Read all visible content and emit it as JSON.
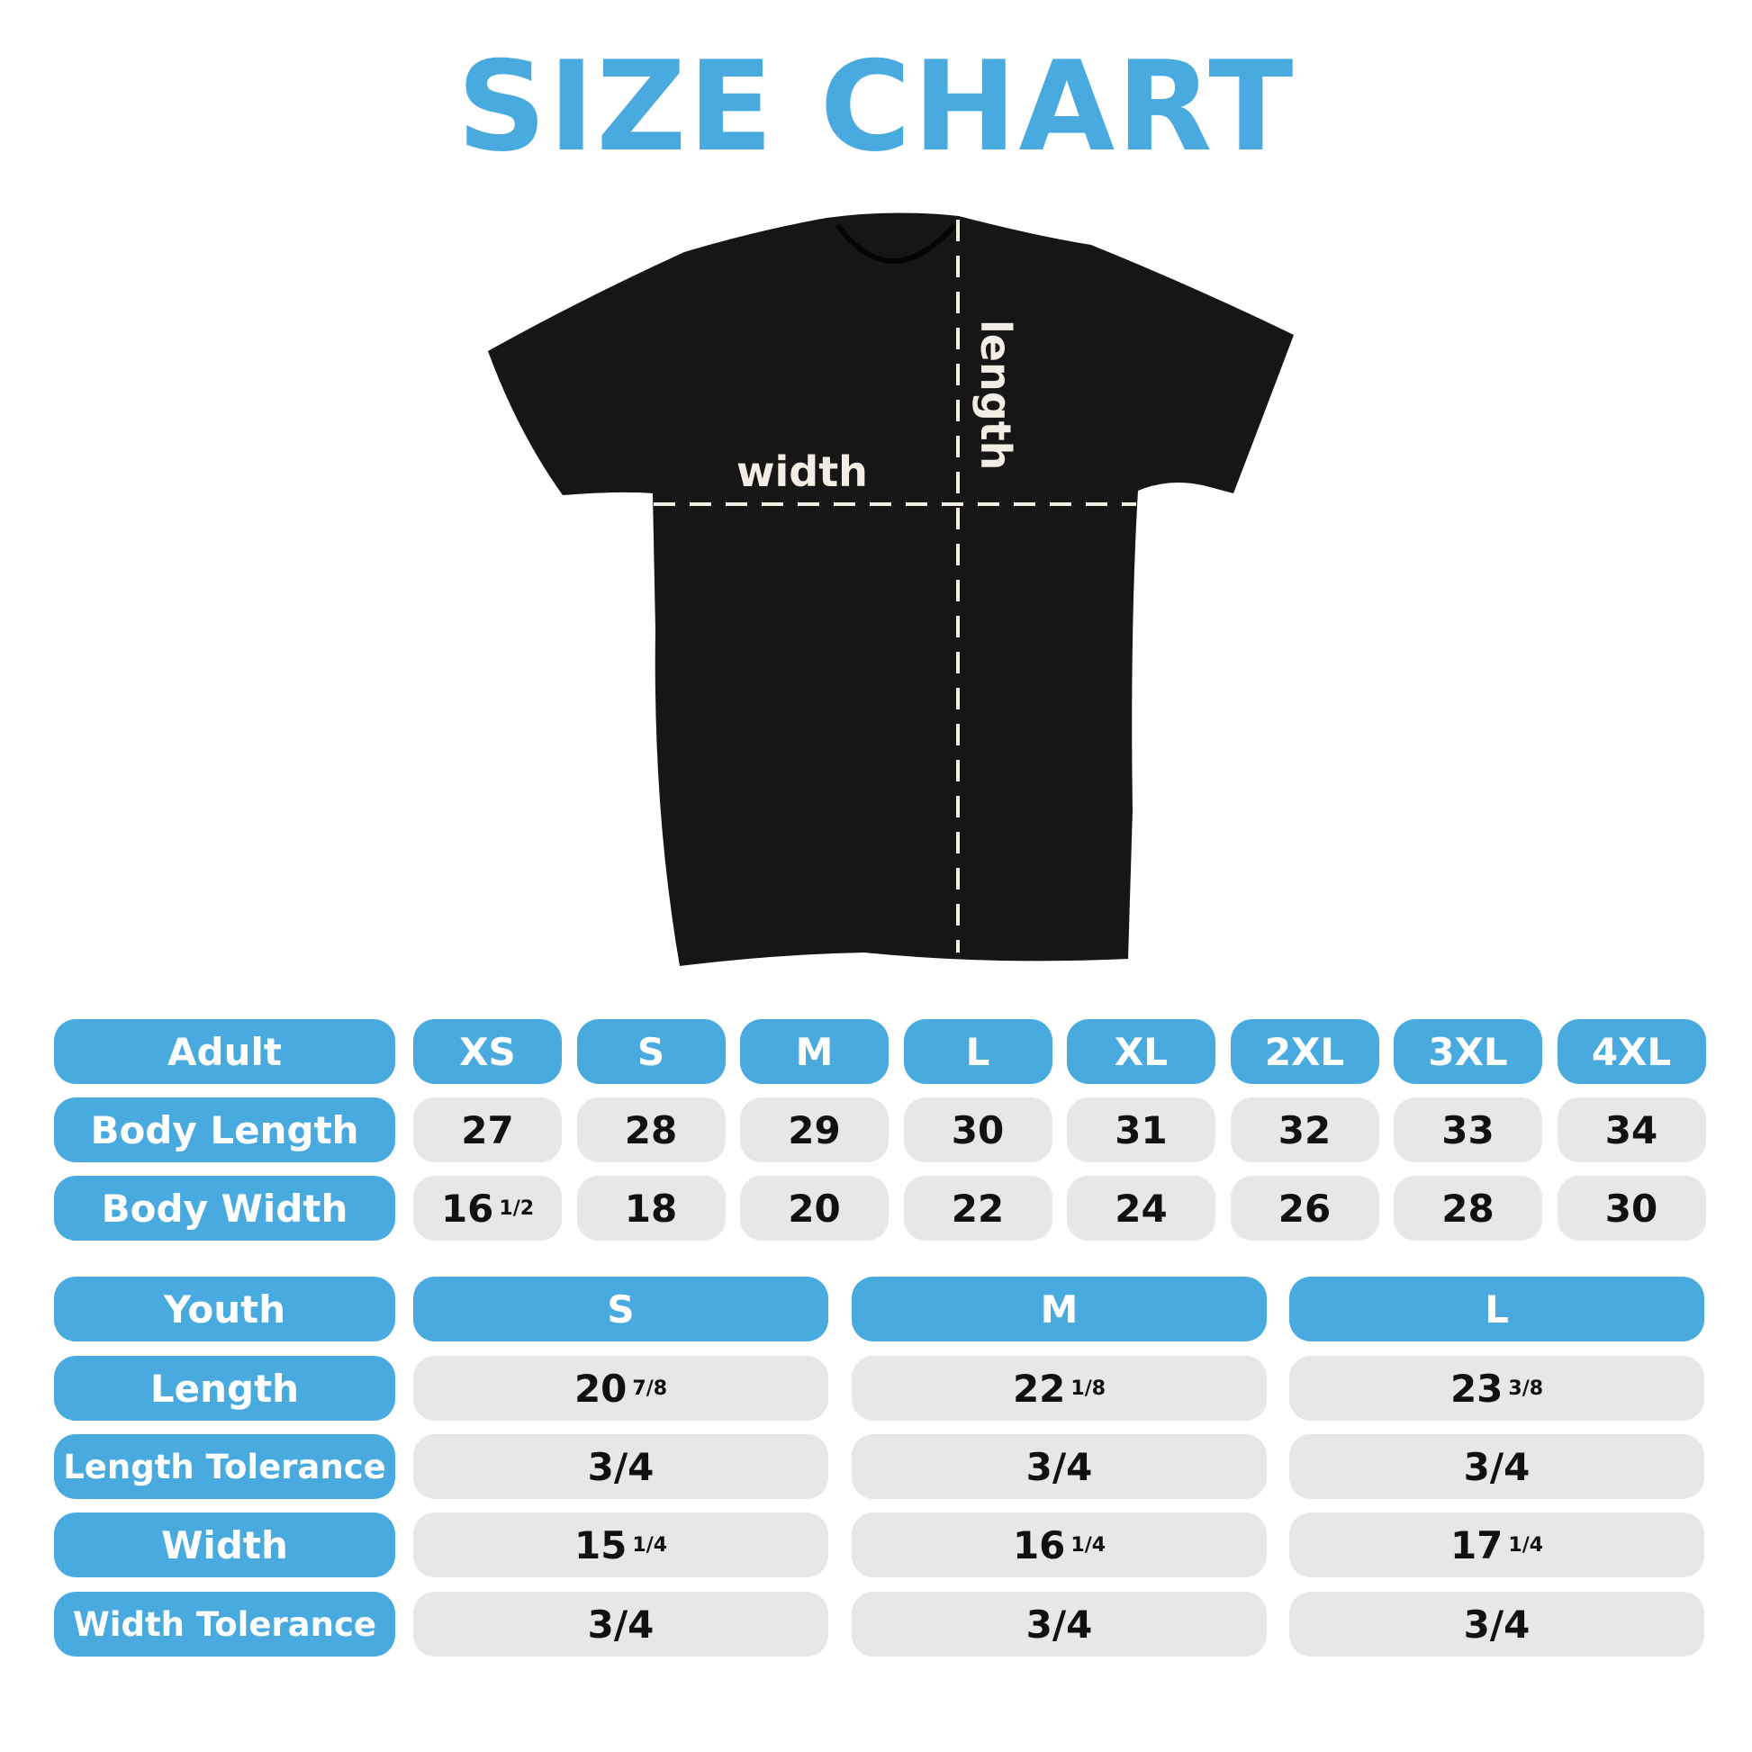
{
  "title": "SIZE CHART",
  "diagram": {
    "width_label": "width",
    "length_label": "length",
    "shirt_color": "#161616",
    "line_color": "#f3ede4"
  },
  "colors": {
    "accent": "#49aadf",
    "cell_bg": "#e6e7e8"
  },
  "adult": {
    "header": "Adult",
    "sizes": [
      "XS",
      "S",
      "M",
      "L",
      "XL",
      "2XL",
      "3XL",
      "4XL"
    ],
    "rows": [
      {
        "label": "Body Length",
        "values": [
          {
            "n": "27"
          },
          {
            "n": "28"
          },
          {
            "n": "29"
          },
          {
            "n": "30"
          },
          {
            "n": "31"
          },
          {
            "n": "32"
          },
          {
            "n": "33"
          },
          {
            "n": "34"
          }
        ]
      },
      {
        "label": "Body Width",
        "values": [
          {
            "n": "16",
            "f": "1/2"
          },
          {
            "n": "18"
          },
          {
            "n": "20"
          },
          {
            "n": "22"
          },
          {
            "n": "24"
          },
          {
            "n": "26"
          },
          {
            "n": "28"
          },
          {
            "n": "30"
          }
        ]
      }
    ]
  },
  "youth": {
    "header": "Youth",
    "sizes": [
      "S",
      "M",
      "L"
    ],
    "rows": [
      {
        "label": "Length",
        "values": [
          {
            "n": "20",
            "f": "7/8"
          },
          {
            "n": "22",
            "f": "1/8"
          },
          {
            "n": "23",
            "f": "3/8"
          }
        ]
      },
      {
        "label": "Length Tolerance",
        "values": [
          {
            "n": "3/4"
          },
          {
            "n": "3/4"
          },
          {
            "n": "3/4"
          }
        ]
      },
      {
        "label": "Width",
        "values": [
          {
            "n": "15",
            "f": "1/4"
          },
          {
            "n": "16",
            "f": "1/4"
          },
          {
            "n": "17",
            "f": "1/4"
          }
        ]
      },
      {
        "label": "Width Tolerance",
        "values": [
          {
            "n": "3/4"
          },
          {
            "n": "3/4"
          },
          {
            "n": "3/4"
          }
        ]
      }
    ]
  }
}
